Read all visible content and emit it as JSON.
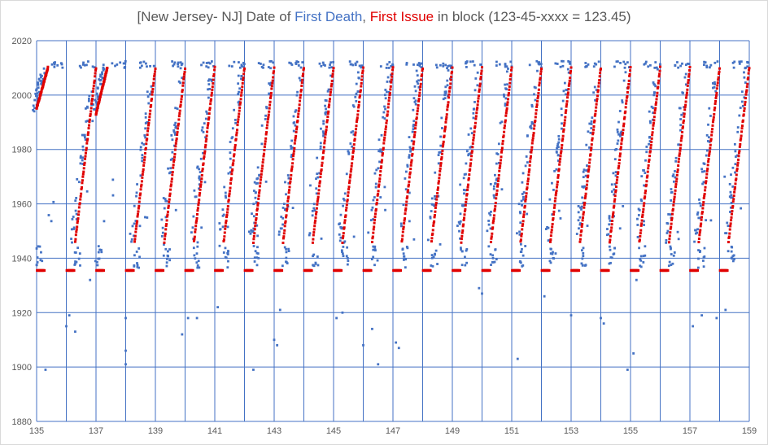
{
  "chart_data": {
    "type": "scatter",
    "title": {
      "prefix": "[New Jersey- NJ] Date of ",
      "first_death": "First Death",
      "comma": ", ",
      "first_issue": "First Issue",
      "suffix": " in block (123-45-xxxx = 123.45)"
    },
    "xlim": [
      135,
      159
    ],
    "ylim": [
      1880,
      2020
    ],
    "x_ticks": [
      "135",
      "137",
      "139",
      "141",
      "143",
      "145",
      "147",
      "149",
      "151",
      "153",
      "155",
      "157",
      "159"
    ],
    "y_ticks": [
      "1880",
      "1900",
      "1920",
      "1940",
      "1960",
      "1980",
      "2000",
      "2020"
    ],
    "x_gridlines_every": 1,
    "y_gridlines_every": 20,
    "grid": true,
    "colors": {
      "first_death": "#4472c4",
      "first_issue": "#e00000",
      "grid": "#4472c4"
    },
    "issue_segments": [
      {
        "start": 135.0,
        "start_year": 1995
      },
      {
        "start": 136.0,
        "start_year": 1946
      },
      {
        "start": 137.0,
        "start_year": 1993
      },
      {
        "start": 138.0,
        "start_year": 1946
      },
      {
        "start": 139.0,
        "start_year": 1946
      },
      {
        "start": 140.0,
        "start_year": 1946
      },
      {
        "start": 141.0,
        "start_year": 1946
      },
      {
        "start": 142.0,
        "start_year": 1946
      },
      {
        "start": 143.0,
        "start_year": 1946
      },
      {
        "start": 144.0,
        "start_year": 1946
      },
      {
        "start": 145.0,
        "start_year": 1946
      },
      {
        "start": 146.0,
        "start_year": 1946
      },
      {
        "start": 147.0,
        "start_year": 1946
      },
      {
        "start": 148.0,
        "start_year": 1946
      },
      {
        "start": 149.0,
        "start_year": 1946
      },
      {
        "start": 150.0,
        "start_year": 1946
      },
      {
        "start": 151.0,
        "start_year": 1946
      },
      {
        "start": 152.0,
        "start_year": 1946
      },
      {
        "start": 153.0,
        "start_year": 1946
      },
      {
        "start": 154.0,
        "start_year": 1946
      },
      {
        "start": 155.0,
        "start_year": 1946
      },
      {
        "start": 156.0,
        "start_year": 1946
      },
      {
        "start": 157.0,
        "start_year": 1946
      },
      {
        "start": 158.0,
        "start_year": 1946
      }
    ],
    "issue_baseline_year": 1935.5,
    "issue_end_year": 2010,
    "death_outliers": [
      {
        "x": 135.3,
        "y": 1899
      },
      {
        "x": 136.0,
        "y": 1915
      },
      {
        "x": 136.3,
        "y": 1913
      },
      {
        "x": 136.1,
        "y": 1919
      },
      {
        "x": 136.8,
        "y": 1932
      },
      {
        "x": 138.0,
        "y": 1918
      },
      {
        "x": 138.0,
        "y": 1906
      },
      {
        "x": 138.0,
        "y": 1901
      },
      {
        "x": 139.9,
        "y": 1912
      },
      {
        "x": 140.1,
        "y": 1918
      },
      {
        "x": 140.4,
        "y": 1918
      },
      {
        "x": 141.1,
        "y": 1922
      },
      {
        "x": 142.3,
        "y": 1899
      },
      {
        "x": 143.2,
        "y": 1921
      },
      {
        "x": 143.0,
        "y": 1910
      },
      {
        "x": 143.1,
        "y": 1908
      },
      {
        "x": 145.1,
        "y": 1918
      },
      {
        "x": 145.3,
        "y": 1920
      },
      {
        "x": 146.0,
        "y": 1908
      },
      {
        "x": 146.3,
        "y": 1914
      },
      {
        "x": 146.5,
        "y": 1901
      },
      {
        "x": 147.1,
        "y": 1909
      },
      {
        "x": 147.2,
        "y": 1907
      },
      {
        "x": 149.9,
        "y": 1929
      },
      {
        "x": 150.0,
        "y": 1927
      },
      {
        "x": 151.2,
        "y": 1903
      },
      {
        "x": 152.1,
        "y": 1926
      },
      {
        "x": 153.0,
        "y": 1919
      },
      {
        "x": 154.0,
        "y": 1918
      },
      {
        "x": 154.1,
        "y": 1916
      },
      {
        "x": 154.9,
        "y": 1899
      },
      {
        "x": 155.1,
        "y": 1905
      },
      {
        "x": 155.2,
        "y": 1932
      },
      {
        "x": 157.1,
        "y": 1915
      },
      {
        "x": 157.4,
        "y": 1919
      },
      {
        "x": 157.9,
        "y": 1918
      },
      {
        "x": 158.2,
        "y": 1921
      }
    ]
  }
}
